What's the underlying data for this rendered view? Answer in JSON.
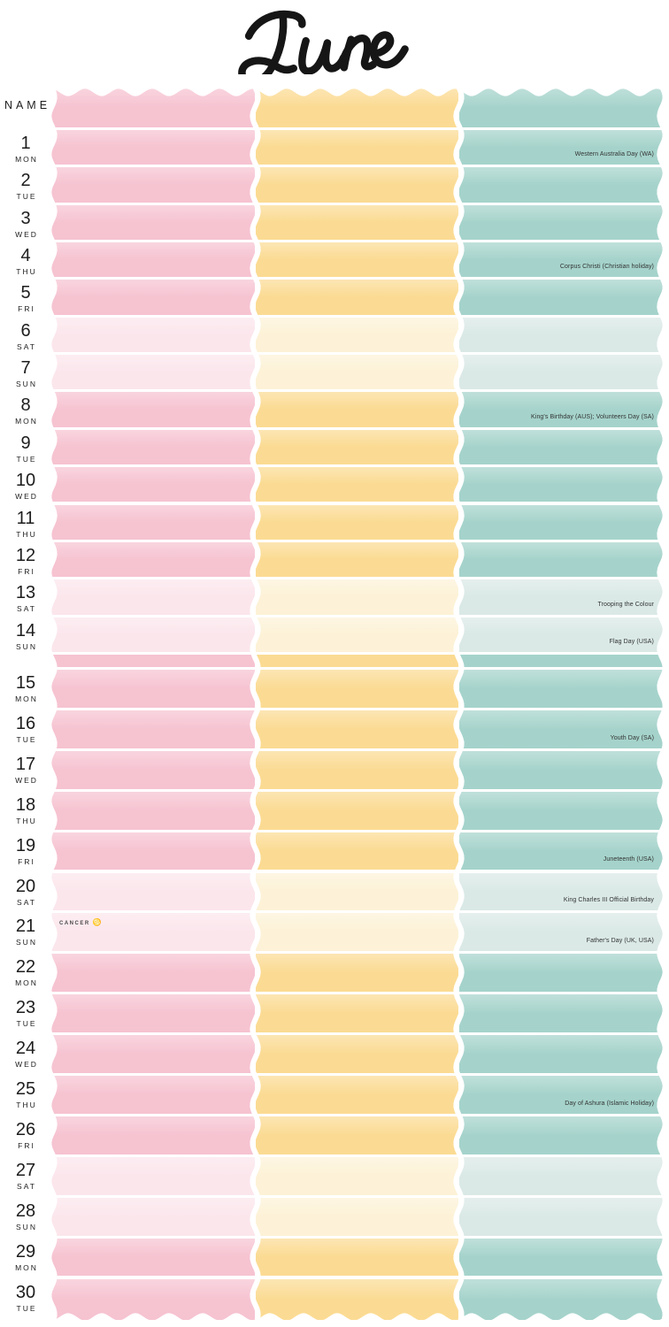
{
  "title": "June",
  "name_header": "NAME",
  "palette": {
    "pink": "#f6c3d1",
    "pink_light": "#fbe6ec",
    "yellow": "#fbdb93",
    "yellow_light": "#fdf2d7",
    "teal": "#a5d3cb",
    "teal_light": "#dae9e6",
    "holiday_text": "#333333",
    "label_text": "#1d1d1d",
    "title_ink": "#161616"
  },
  "columns": [
    {
      "id": "column-1",
      "color_key": "pink"
    },
    {
      "id": "column-2",
      "color_key": "yellow"
    },
    {
      "id": "column-3",
      "color_key": "teal"
    }
  ],
  "zodiac": {
    "day": 21,
    "label": "CANCER",
    "symbol": "♋"
  },
  "days": [
    {
      "num": 1,
      "abbr": "MON",
      "weekend": false,
      "holiday": "Western Australia Day (WA)"
    },
    {
      "num": 2,
      "abbr": "TUE",
      "weekend": false,
      "holiday": ""
    },
    {
      "num": 3,
      "abbr": "WED",
      "weekend": false,
      "holiday": ""
    },
    {
      "num": 4,
      "abbr": "THU",
      "weekend": false,
      "holiday": "Corpus Christi (Christian holiday)"
    },
    {
      "num": 5,
      "abbr": "FRI",
      "weekend": false,
      "holiday": ""
    },
    {
      "num": 6,
      "abbr": "SAT",
      "weekend": true,
      "holiday": ""
    },
    {
      "num": 7,
      "abbr": "SUN",
      "weekend": true,
      "holiday": ""
    },
    {
      "num": 8,
      "abbr": "MON",
      "weekend": false,
      "holiday": "King's Birthday (AUS); Volunteers Day (SA)"
    },
    {
      "num": 9,
      "abbr": "TUE",
      "weekend": false,
      "holiday": ""
    },
    {
      "num": 10,
      "abbr": "WED",
      "weekend": false,
      "holiday": ""
    },
    {
      "num": 11,
      "abbr": "THU",
      "weekend": false,
      "holiday": ""
    },
    {
      "num": 12,
      "abbr": "FRI",
      "weekend": false,
      "holiday": ""
    },
    {
      "num": 13,
      "abbr": "SAT",
      "weekend": true,
      "holiday": "Trooping the Colour"
    },
    {
      "num": 14,
      "abbr": "SUN",
      "weekend": true,
      "holiday": "Flag Day (USA)"
    },
    {
      "num": 15,
      "abbr": "MON",
      "weekend": false,
      "holiday": ""
    },
    {
      "num": 16,
      "abbr": "TUE",
      "weekend": false,
      "holiday": "Youth Day (SA)"
    },
    {
      "num": 17,
      "abbr": "WED",
      "weekend": false,
      "holiday": ""
    },
    {
      "num": 18,
      "abbr": "THU",
      "weekend": false,
      "holiday": ""
    },
    {
      "num": 19,
      "abbr": "FRI",
      "weekend": false,
      "holiday": "Juneteenth (USA)"
    },
    {
      "num": 20,
      "abbr": "SAT",
      "weekend": true,
      "holiday": "King Charles III Official Birthday"
    },
    {
      "num": 21,
      "abbr": "SUN",
      "weekend": true,
      "holiday": "Father's Day (UK, USA)"
    },
    {
      "num": 22,
      "abbr": "MON",
      "weekend": false,
      "holiday": ""
    },
    {
      "num": 23,
      "abbr": "TUE",
      "weekend": false,
      "holiday": ""
    },
    {
      "num": 24,
      "abbr": "WED",
      "weekend": false,
      "holiday": ""
    },
    {
      "num": 25,
      "abbr": "THU",
      "weekend": false,
      "holiday": "Day of Ashura (Islamic Holiday)"
    },
    {
      "num": 26,
      "abbr": "FRI",
      "weekend": false,
      "holiday": ""
    },
    {
      "num": 27,
      "abbr": "SAT",
      "weekend": true,
      "holiday": ""
    },
    {
      "num": 28,
      "abbr": "SUN",
      "weekend": true,
      "holiday": ""
    },
    {
      "num": 29,
      "abbr": "MON",
      "weekend": false,
      "holiday": ""
    },
    {
      "num": 30,
      "abbr": "TUE",
      "weekend": false,
      "holiday": ""
    }
  ]
}
